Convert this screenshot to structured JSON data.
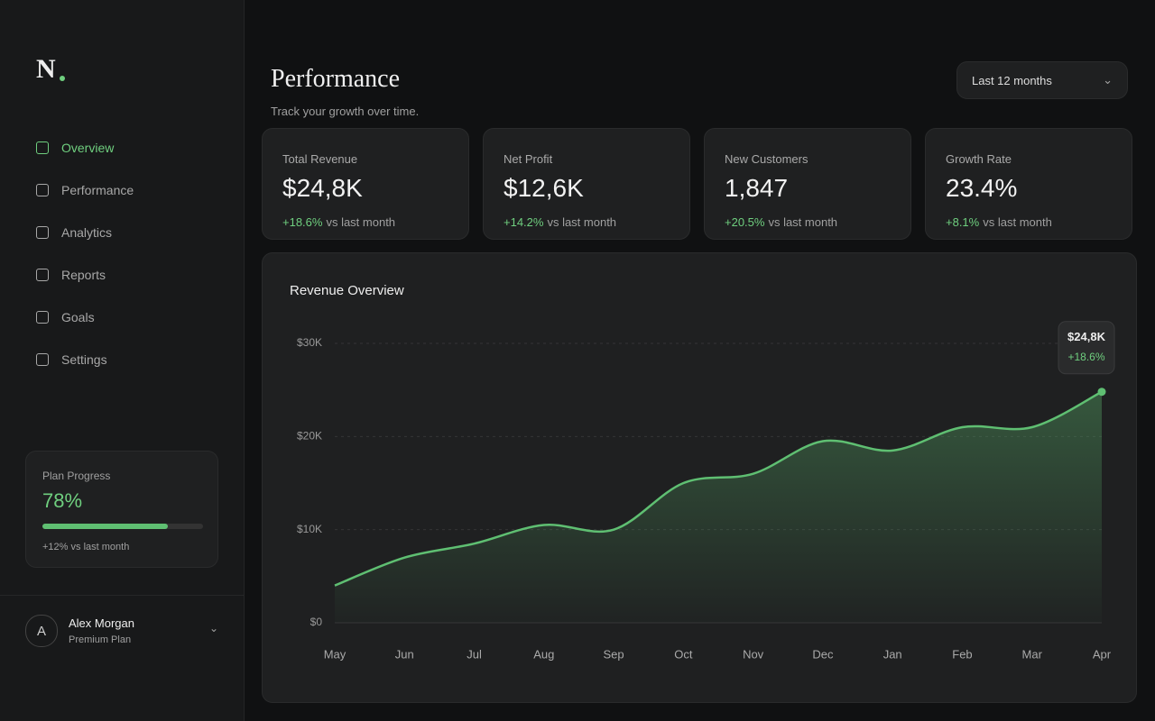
{
  "sidebar": {
    "brand": "N",
    "nav": [
      "Overview",
      "Performance",
      "Analytics",
      "Reports",
      "Goals",
      "Settings"
    ],
    "active": 0,
    "plan": {
      "label": "Plan Progress",
      "value": 78,
      "value_label": "78%",
      "change": "+12%",
      "note": "vs last month"
    },
    "user": {
      "initial": "A",
      "name": "Alex Morgan",
      "plan": "Premium Plan"
    }
  },
  "header": {
    "title": "Performance",
    "subtitle": "Track your growth over time.",
    "range": "Last 12 months"
  },
  "kpis": [
    {
      "label": "Total Revenue",
      "value": "$24,8K",
      "change": "+18.6%",
      "note": "vs last month"
    },
    {
      "label": "Net Profit",
      "value": "$12,6K",
      "change": "+14.2%",
      "note": "vs last month"
    },
    {
      "label": "New Customers",
      "value": "1,847",
      "change": "+20.5%",
      "note": "vs last month"
    },
    {
      "label": "Growth Rate",
      "value": "23.4%",
      "change": "+8.1%",
      "note": "vs last month"
    }
  ],
  "chart_data": {
    "type": "area",
    "title": "Revenue Overview",
    "categories": [
      "May",
      "Jun",
      "Jul",
      "Aug",
      "Sep",
      "Oct",
      "Nov",
      "Dec",
      "Jan",
      "Feb",
      "Mar",
      "Apr"
    ],
    "values": [
      4000,
      7000,
      8500,
      10500,
      10000,
      15000,
      16000,
      19500,
      18500,
      21000,
      21000,
      24800
    ],
    "value_labels": [
      null,
      null,
      null,
      null,
      null,
      null,
      null,
      null,
      null,
      null,
      null,
      "$24,8K"
    ],
    "annotation": "+18.6%",
    "color": "#5fbf72",
    "ylim": [
      0,
      30000
    ],
    "yticks": [
      {
        "value": 0,
        "label": "$0"
      },
      {
        "value": 10000,
        "label": "$10K"
      },
      {
        "value": 20000,
        "label": "$20K"
      },
      {
        "value": 30000,
        "label": "$30K"
      }
    ],
    "grid": true
  }
}
